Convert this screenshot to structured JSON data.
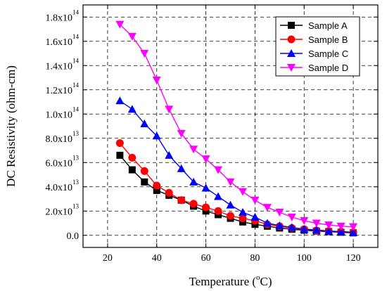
{
  "chart_data": {
    "type": "line",
    "xlabel": "Temperature (",
    "xlabel_sup": "o",
    "xlabel_tail": "C)",
    "ylabel": "DC Resistivity (ohm-cm)",
    "xlim": [
      10,
      130
    ],
    "ylim": [
      -10000000000000.0,
      190000000000000.0
    ],
    "xticks": [
      {
        "value": 20,
        "label": "20"
      },
      {
        "value": 40,
        "label": "40"
      },
      {
        "value": 60,
        "label": "60"
      },
      {
        "value": 80,
        "label": "80"
      },
      {
        "value": 100,
        "label": "100"
      },
      {
        "value": 120,
        "label": "120"
      }
    ],
    "yticks": [
      {
        "value": 0,
        "mantissa": "0.0",
        "exp": ""
      },
      {
        "value": 20000000000000.0,
        "mantissa": "2.0x10",
        "exp": "13"
      },
      {
        "value": 40000000000000.0,
        "mantissa": "4.0x10",
        "exp": "13"
      },
      {
        "value": 60000000000000.0,
        "mantissa": "6.0x10",
        "exp": "13"
      },
      {
        "value": 80000000000000.0,
        "mantissa": "8.0x10",
        "exp": "13"
      },
      {
        "value": 100000000000000.0,
        "mantissa": "1.0x10",
        "exp": "14"
      },
      {
        "value": 120000000000000.0,
        "mantissa": "1.2x10",
        "exp": "14"
      },
      {
        "value": 140000000000000.0,
        "mantissa": "1.4x10",
        "exp": "14"
      },
      {
        "value": 160000000000000.0,
        "mantissa": "1.6x10",
        "exp": "14"
      },
      {
        "value": 180000000000000.0,
        "mantissa": "1.8x10",
        "exp": "14"
      }
    ],
    "grid": true,
    "legend_position": "top-right",
    "x": [
      25,
      30,
      35,
      40,
      45,
      50,
      55,
      60,
      65,
      70,
      75,
      80,
      85,
      90,
      95,
      100,
      105,
      110,
      115,
      120
    ],
    "series": [
      {
        "name": "Sample A",
        "color": "#000000",
        "marker": "square",
        "values": [
          66000000000000.0,
          54000000000000.0,
          44000000000000.0,
          37000000000000.0,
          33000000000000.0,
          29000000000000.0,
          24000000000000.0,
          20000000000000.0,
          17000000000000.0,
          14000000000000.0,
          11000000000000.0,
          9000000000000.0,
          7500000000000.0,
          6000000000000.0,
          5000000000000.0,
          4200000000000.0,
          3500000000000.0,
          3000000000000.0,
          2500000000000.0,
          2000000000000.0
        ]
      },
      {
        "name": "Sample B",
        "color": "#ff0000",
        "marker": "circle",
        "values": [
          76000000000000.0,
          64000000000000.0,
          53000000000000.0,
          41000000000000.0,
          35000000000000.0,
          29000000000000.0,
          26000000000000.0,
          23000000000000.0,
          20000000000000.0,
          16000000000000.0,
          14000000000000.0,
          12000000000000.0,
          9000000000000.0,
          7500000000000.0,
          6000000000000.0,
          5000000000000.0,
          4000000000000.0,
          3500000000000.0,
          3000000000000.0,
          2500000000000.0
        ]
      },
      {
        "name": "Sample C",
        "color": "#0000ff",
        "marker": "triangle-up",
        "values": [
          111000000000000.0,
          104000000000000.0,
          92000000000000.0,
          82000000000000.0,
          66000000000000.0,
          55000000000000.0,
          44000000000000.0,
          39000000000000.0,
          32000000000000.0,
          25000000000000.0,
          19000000000000.0,
          15000000000000.0,
          10000000000000.0,
          8000000000000.0,
          6500000000000.0,
          5000000000000.0,
          4500000000000.0,
          3500000000000.0,
          3000000000000.0,
          2500000000000.0
        ]
      },
      {
        "name": "Sample D",
        "color": "#ff00ff",
        "marker": "triangle-down",
        "values": [
          174000000000000.0,
          164000000000000.0,
          150000000000000.0,
          128000000000000.0,
          104000000000000.0,
          84000000000000.0,
          71000000000000.0,
          63000000000000.0,
          54000000000000.0,
          44000000000000.0,
          36000000000000.0,
          29000000000000.0,
          23000000000000.0,
          19000000000000.0,
          15000000000000.0,
          12000000000000.0,
          10000000000000.0,
          8500000000000.0,
          7500000000000.0,
          7000000000000.0
        ]
      }
    ]
  }
}
